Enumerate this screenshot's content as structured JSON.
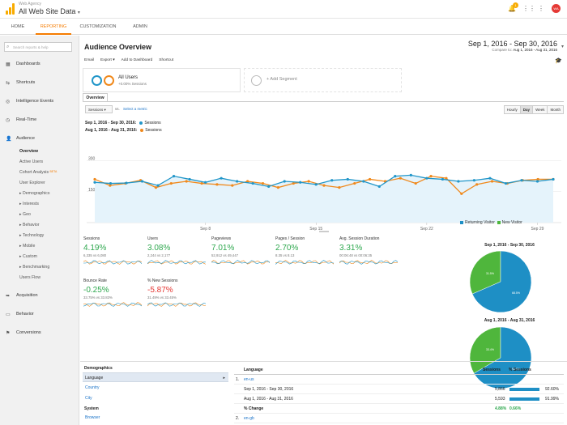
{
  "app": {
    "account_small": "Web Agency",
    "account_title": "All Web Site Data",
    "notification_count": "1",
    "avatar_initials": "WA"
  },
  "nav": {
    "tabs": [
      "HOME",
      "REPORTING",
      "CUSTOMIZATION",
      "ADMIN"
    ],
    "active": "REPORTING"
  },
  "sidebar": {
    "search_placeholder": "Search reports & help",
    "items": [
      {
        "label": "Dashboards",
        "icon": "grid-icon"
      },
      {
        "label": "Shortcuts",
        "icon": "shortcut-icon"
      },
      {
        "label": "Intelligence Events",
        "icon": "lightbulb-icon"
      },
      {
        "label": "Real-Time",
        "icon": "clock-icon"
      },
      {
        "label": "Audience",
        "icon": "people-icon"
      }
    ],
    "audience_sub": [
      "Overview",
      "Active Users",
      "Cohort Analysis",
      "User Explorer",
      "Demographics",
      "Interests",
      "Geo",
      "Behavior",
      "Technology",
      "Mobile",
      "Custom",
      "Benchmarking",
      "Users Flow"
    ],
    "beta_label": "BETA",
    "bottom_items": [
      {
        "label": "Acquisition",
        "icon": "acquisition-icon"
      },
      {
        "label": "Behavior",
        "icon": "behavior-icon"
      },
      {
        "label": "Conversions",
        "icon": "flag-icon"
      }
    ]
  },
  "header": {
    "title": "Audience Overview",
    "date_range": "Sep 1, 2016 - Sep 30, 2016",
    "compare_prefix": "Compare to:",
    "compare_range": "Aug 1, 2016 - Aug 31, 2016",
    "actions": [
      "Email",
      "Export ▾",
      "Add to Dashboard",
      "Shortcut"
    ]
  },
  "segments": {
    "name": "All Users",
    "pct": "+0.00% Sessions",
    "add_label": "+ Add Segment"
  },
  "overview": {
    "tab": "Overview",
    "metric_select": "Sessions ▾",
    "vs": "vs.",
    "select_metric": "Select a metric",
    "granularity": [
      "Hourly",
      "Day",
      "Week",
      "Month"
    ],
    "active_granularity": "Day",
    "legend": [
      {
        "period": "Sep 1, 2016 - Sep 30, 2016:",
        "label": "Sessions",
        "color": "#2196c9"
      },
      {
        "period": "Aug 1, 2016 - Aug 31, 2016:",
        "label": "Sessions",
        "color": "#f0891c"
      }
    ]
  },
  "chart_data": {
    "type": "line",
    "y_ticks": [
      "300",
      "150"
    ],
    "x_labels": [
      "Sep 8",
      "Sep 15",
      "Sep 22",
      "Sep 29"
    ],
    "ylim": [
      0,
      400
    ],
    "series": [
      {
        "name": "Sessions",
        "period": "Sep 1, 2016 - Sep 30, 2016",
        "color": "#2196c9",
        "values": [
          195,
          190,
          192,
          200,
          180,
          225,
          210,
          195,
          215,
          200,
          190,
          175,
          200,
          195,
          185,
          205,
          210,
          200,
          175,
          225,
          230,
          215,
          210,
          200,
          205,
          215,
          190,
          205,
          200,
          210
        ]
      },
      {
        "name": "Sessions",
        "period": "Aug 1, 2016 - Aug 31, 2016",
        "color": "#f0891c",
        "values": [
          210,
          180,
          190,
          205,
          170,
          190,
          200,
          190,
          185,
          180,
          200,
          190,
          170,
          190,
          200,
          180,
          170,
          190,
          210,
          200,
          215,
          190,
          225,
          215,
          140,
          185,
          200,
          190,
          205,
          210,
          210
        ]
      }
    ]
  },
  "scorecards": [
    {
      "title": "Sessions",
      "value": "4.19%",
      "trend": "up",
      "compare": "6,335 vs 6,080"
    },
    {
      "title": "Users",
      "value": "3.08%",
      "trend": "up",
      "compare": "2,244 vs 2,177"
    },
    {
      "title": "Pageviews",
      "value": "7.01%",
      "trend": "up",
      "compare": "52,912 vs 49,447"
    },
    {
      "title": "Pages / Session",
      "value": "2.70%",
      "trend": "up",
      "compare": "8.35 vs 8.13"
    },
    {
      "title": "Avg. Session Duration",
      "value": "3.31%",
      "trend": "up",
      "compare": "00:06:48 vs 00:06:35"
    },
    {
      "title": "Bounce Rate",
      "value": "-0.25%",
      "trend": "up",
      "compare": "33.75% vs 33.83%"
    },
    {
      "title": "% New Sessions",
      "value": "-5.87%",
      "trend": "down",
      "compare": "31.49% vs 33.45%"
    }
  ],
  "pies": {
    "legend": [
      {
        "label": "Returning Visitor",
        "color": "#1e8fc5"
      },
      {
        "label": "New Visitor",
        "color": "#4fb63c"
      }
    ],
    "charts": [
      {
        "title": "Sep 1, 2016 - Sep 30, 2016",
        "returning": 68.5,
        "new": 31.5,
        "returning_label": "68.5%",
        "new_label": "31.5%"
      },
      {
        "title": "Aug 1, 2016 - Aug 31, 2016",
        "returning": 66.6,
        "new": 33.4,
        "returning_label": "66.6%",
        "new_label": "33.4%"
      }
    ]
  },
  "demographics": {
    "heading": "Demographics",
    "rows": [
      "Language",
      "Country",
      "City"
    ],
    "system_heading": "System",
    "system_rows": [
      "Browser"
    ]
  },
  "table": {
    "headers": {
      "dim": "Language",
      "sessions": "Sessions",
      "pct": "% Sessions"
    },
    "rows": [
      {
        "num": "1.",
        "dim": "en-us"
      },
      {
        "period": "Sep 1, 2016 - Sep 30, 2016",
        "sessions": "5,866",
        "pct": "92.60%",
        "bar": 92.6
      },
      {
        "period": "Aug 1, 2016 - Aug 31, 2016",
        "sessions": "5,593",
        "pct": "91.99%",
        "bar": 91.99
      },
      {
        "period": "% Change",
        "sessions": "4.88%",
        "pct": "0.66%"
      },
      {
        "num": "2.",
        "dim": "en-gb"
      }
    ]
  }
}
